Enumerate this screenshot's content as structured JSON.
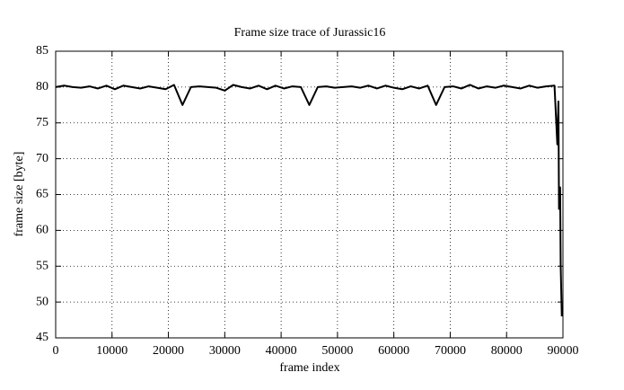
{
  "chart_data": {
    "type": "line",
    "title": "Frame size trace of Jurassic16",
    "xlabel": "frame index",
    "ylabel": "frame size [byte]",
    "x": [
      0,
      1500,
      3000,
      4500,
      6000,
      7500,
      9000,
      10500,
      12000,
      13500,
      15000,
      16500,
      18000,
      19500,
      21000,
      22500,
      24000,
      25500,
      27000,
      28500,
      30000,
      31500,
      33000,
      34500,
      36000,
      37500,
      39000,
      40500,
      42000,
      43500,
      45000,
      46500,
      48000,
      49500,
      51000,
      52500,
      54000,
      55500,
      57000,
      58500,
      60000,
      61500,
      63000,
      64500,
      66000,
      67500,
      69000,
      70500,
      72000,
      73500,
      75000,
      76500,
      78000,
      79500,
      81000,
      82500,
      84000,
      85500,
      87000,
      88500,
      89000,
      89200,
      89300,
      89500,
      89600,
      89800
    ],
    "series": [
      {
        "color": "#000000",
        "values": [
          80.0,
          80.2,
          80.0,
          79.9,
          80.1,
          79.8,
          80.2,
          79.7,
          80.2,
          80.0,
          79.8,
          80.1,
          79.9,
          79.7,
          80.3,
          77.5,
          80.0,
          80.1,
          80.0,
          79.9,
          79.5,
          80.3,
          80.0,
          79.8,
          80.2,
          79.7,
          80.2,
          79.8,
          80.1,
          80.0,
          77.5,
          80.0,
          80.1,
          79.9,
          80.0,
          80.1,
          79.9,
          80.2,
          79.8,
          80.2,
          79.9,
          79.7,
          80.1,
          79.8,
          80.2,
          77.5,
          80.0,
          80.1,
          79.8,
          80.3,
          79.8,
          80.1,
          79.9,
          80.2,
          80.0,
          79.8,
          80.2,
          79.9,
          80.1,
          80.2,
          72,
          78,
          63,
          66,
          55,
          48
        ]
      }
    ],
    "xlim": [
      0,
      90000
    ],
    "ylim": [
      45,
      85
    ],
    "xticks": [
      0,
      10000,
      20000,
      30000,
      40000,
      50000,
      60000,
      70000,
      80000,
      90000
    ],
    "yticks": [
      45,
      50,
      55,
      60,
      65,
      70,
      75,
      80,
      85
    ],
    "grid": true
  }
}
